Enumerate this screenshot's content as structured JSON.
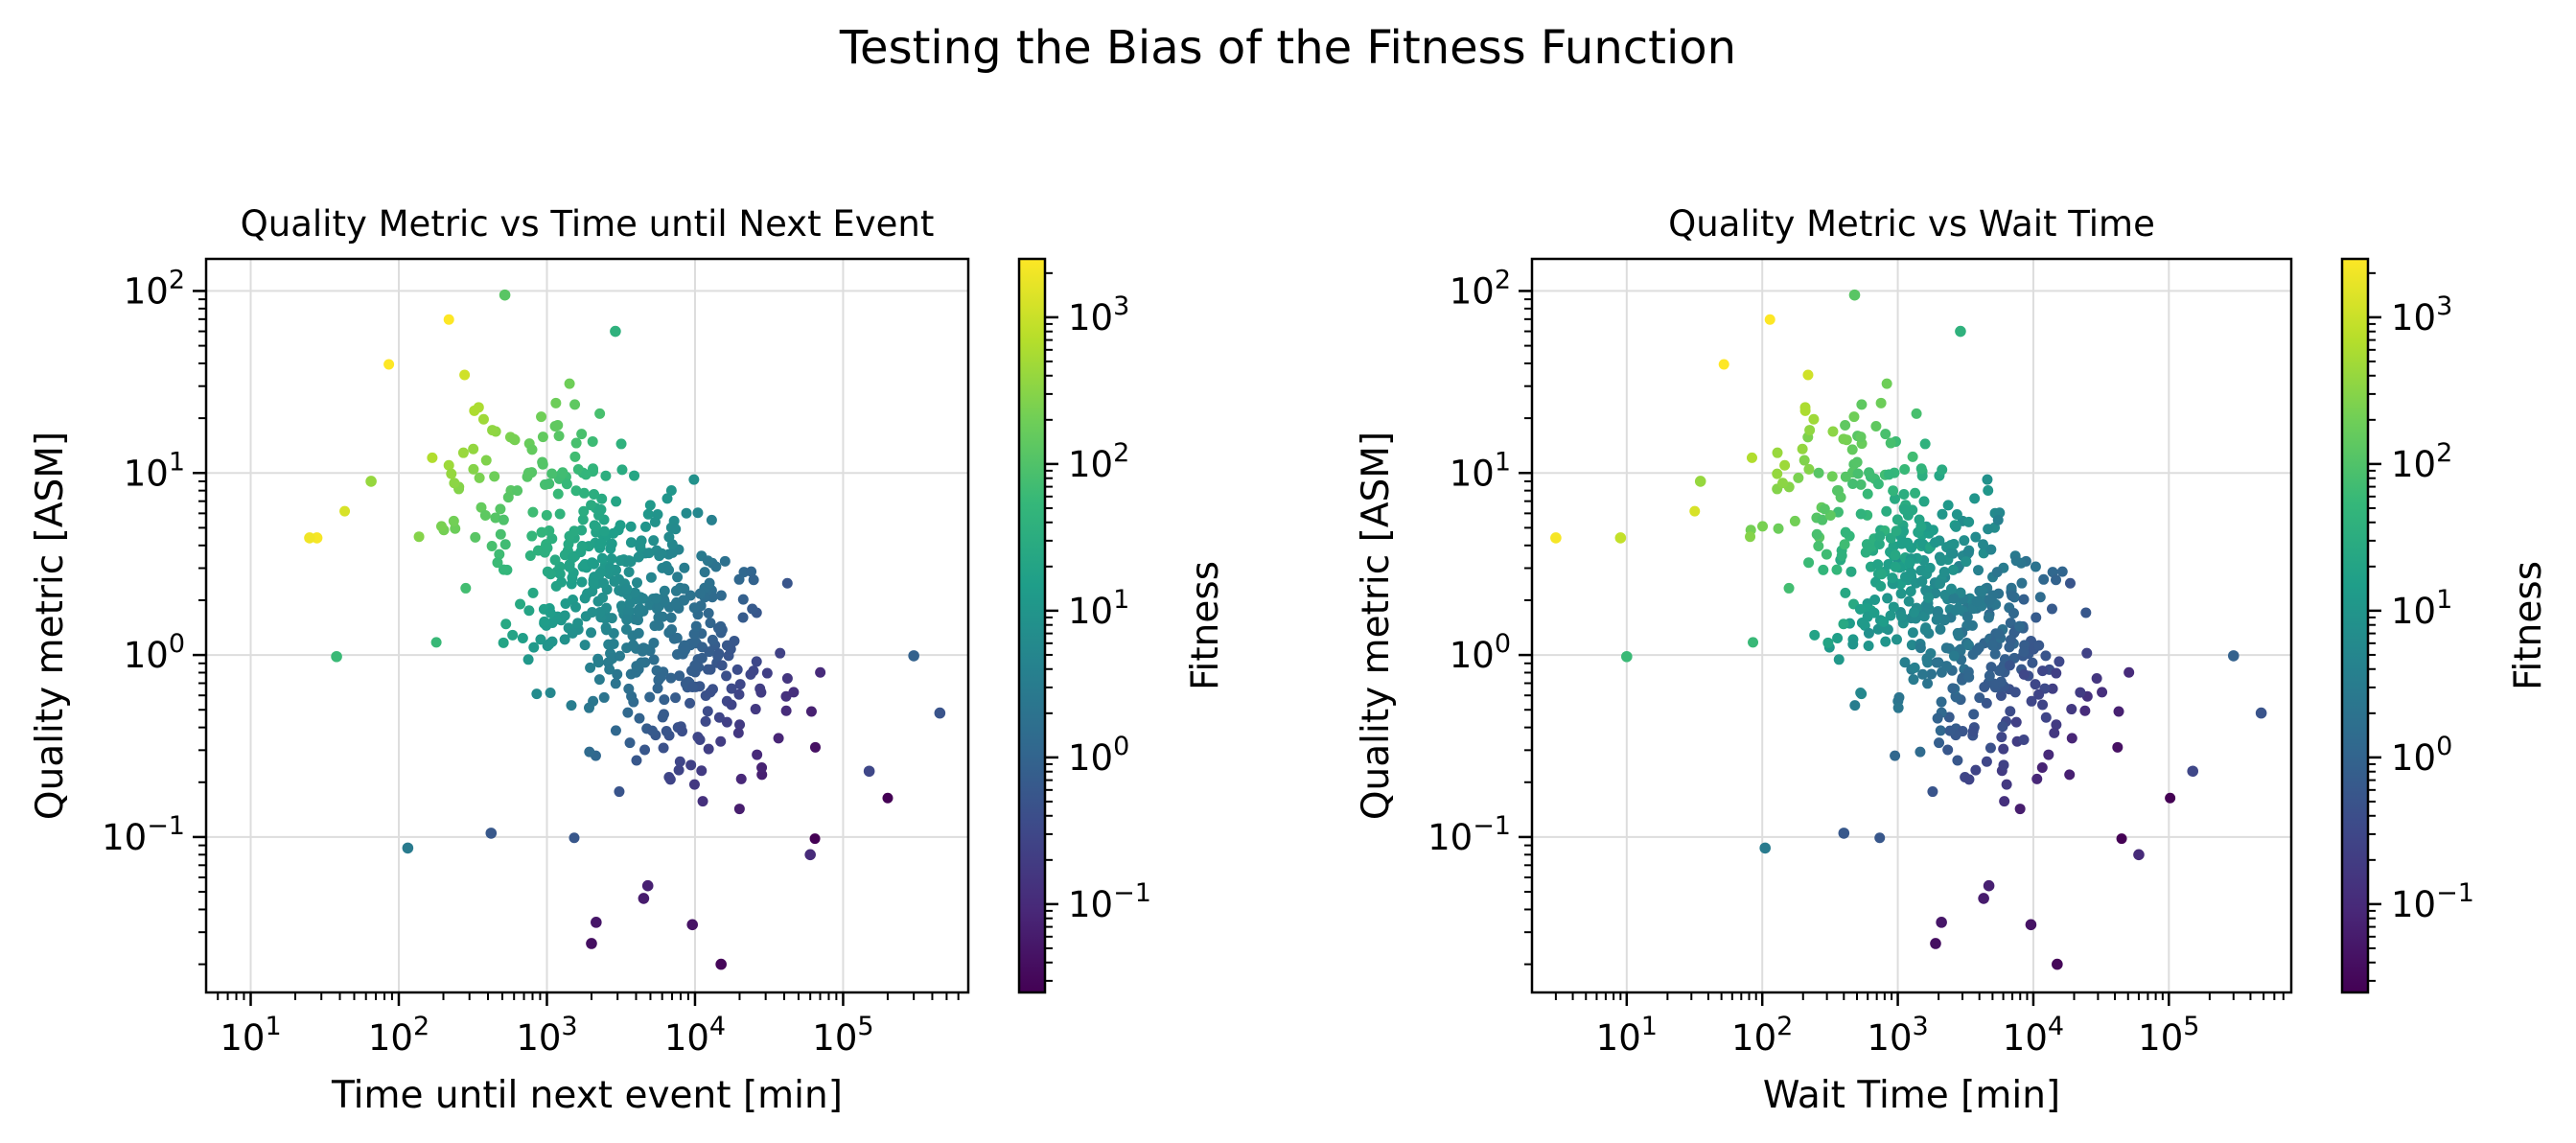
{
  "figure": {
    "suptitle": "Testing the Bias of the Fitness Function"
  },
  "colors": {
    "colormap": "viridis",
    "viridis_stops": [
      "#440154",
      "#482878",
      "#3e4989",
      "#31688e",
      "#26828e",
      "#1f9e89",
      "#35b779",
      "#6ece58",
      "#b5de2b",
      "#fde725"
    ],
    "axes": "#000000",
    "grid": "#dddddd"
  },
  "chart_data": [
    {
      "type": "scatter",
      "title": "Quality Metric vs Time until Next Event",
      "xlabel": "Time until next event [min]",
      "ylabel": "Quality metric [ASM]",
      "xscale": "log",
      "yscale": "log",
      "xlim": [
        5,
        700000
      ],
      "ylim": [
        0.014,
        150
      ],
      "xticks": [
        10,
        100,
        1000,
        10000,
        100000
      ],
      "xticklabels": [
        "10^1",
        "10^2",
        "10^3",
        "10^4",
        "10^5"
      ],
      "yticks": [
        0.1,
        1,
        10,
        100
      ],
      "yticklabels": [
        "10^-1",
        "10^0",
        "10^1",
        "10^2"
      ],
      "grid": true,
      "colorbar": {
        "label": "Fitness",
        "scale": "log",
        "range": [
          0.025,
          2500
        ],
        "ticks": [
          0.1,
          1,
          10,
          100,
          1000
        ],
        "ticklabels": [
          "10^-1",
          "10^0",
          "10^1",
          "10^2",
          "10^3"
        ]
      },
      "point_cloud": {
        "points_shown": 540,
        "note": "dense cloud centered near x=3000 min, y=3 ASM; fitness ≈ quality/wait·scale",
        "notable_points": [
          {
            "x": 28,
            "y": 4.4,
            "fitness": 2200
          },
          {
            "x": 25,
            "y": 4.4,
            "fitness": 2000
          },
          {
            "x": 65,
            "y": 9,
            "fitness": 400
          },
          {
            "x": 520,
            "y": 95,
            "fitness": 120
          },
          {
            "x": 2900,
            "y": 60,
            "fitness": 40
          },
          {
            "x": 38,
            "y": 0.98,
            "fitness": 60
          },
          {
            "x": 115,
            "y": 0.087,
            "fitness": 3
          },
          {
            "x": 420,
            "y": 0.105,
            "fitness": 0.6
          },
          {
            "x": 2000,
            "y": 0.026,
            "fitness": 0.04
          },
          {
            "x": 2150,
            "y": 0.034,
            "fitness": 0.05
          },
          {
            "x": 4800,
            "y": 0.054,
            "fitness": 0.07
          },
          {
            "x": 4500,
            "y": 0.046,
            "fitness": 0.06
          },
          {
            "x": 9600,
            "y": 0.033,
            "fitness": 0.045
          },
          {
            "x": 15000,
            "y": 0.02,
            "fitness": 0.03
          },
          {
            "x": 60000,
            "y": 0.08,
            "fitness": 0.1
          },
          {
            "x": 300000,
            "y": 0.99,
            "fitness": 0.9
          },
          {
            "x": 450000,
            "y": 0.48,
            "fitness": 0.5
          },
          {
            "x": 150000,
            "y": 0.23,
            "fitness": 0.3
          }
        ]
      }
    },
    {
      "type": "scatter",
      "title": "Quality Metric vs Wait Time",
      "xlabel": "Wait Time [min]",
      "ylabel": "Quality metric [ASM]",
      "xscale": "log",
      "yscale": "log",
      "xlim": [
        2,
        800000
      ],
      "ylim": [
        0.014,
        150
      ],
      "xticks": [
        10,
        100,
        1000,
        10000,
        100000
      ],
      "xticklabels": [
        "10^1",
        "10^2",
        "10^3",
        "10^4",
        "10^5"
      ],
      "yticks": [
        0.1,
        1,
        10,
        100
      ],
      "yticklabels": [
        "10^-1",
        "10^0",
        "10^1",
        "10^2"
      ],
      "grid": true,
      "colorbar": {
        "label": "Fitness",
        "scale": "log",
        "range": [
          0.025,
          2500
        ],
        "ticks": [
          0.1,
          1,
          10,
          100,
          1000
        ],
        "ticklabels": [
          "10^-1",
          "10^0",
          "10^1",
          "10^2",
          "10^3"
        ]
      },
      "point_cloud": {
        "points_shown": 540,
        "note": "same points as left panel, plotted against wait time",
        "notable_points": [
          {
            "x": 3,
            "y": 4.4,
            "fitness": 2200
          },
          {
            "x": 9,
            "y": 4.4,
            "fitness": 900
          },
          {
            "x": 35,
            "y": 9,
            "fitness": 400
          },
          {
            "x": 480,
            "y": 95,
            "fitness": 120
          },
          {
            "x": 2900,
            "y": 60,
            "fitness": 40
          },
          {
            "x": 10,
            "y": 0.98,
            "fitness": 60
          },
          {
            "x": 105,
            "y": 0.087,
            "fitness": 3
          },
          {
            "x": 400,
            "y": 0.105,
            "fitness": 0.6
          },
          {
            "x": 1900,
            "y": 0.026,
            "fitness": 0.04
          },
          {
            "x": 2100,
            "y": 0.034,
            "fitness": 0.05
          },
          {
            "x": 4700,
            "y": 0.054,
            "fitness": 0.07
          },
          {
            "x": 4300,
            "y": 0.046,
            "fitness": 0.06
          },
          {
            "x": 9600,
            "y": 0.033,
            "fitness": 0.045
          },
          {
            "x": 15000,
            "y": 0.02,
            "fitness": 0.03
          },
          {
            "x": 60000,
            "y": 0.08,
            "fitness": 0.1
          },
          {
            "x": 300000,
            "y": 0.99,
            "fitness": 0.9
          },
          {
            "x": 480000,
            "y": 0.48,
            "fitness": 0.5
          },
          {
            "x": 150000,
            "y": 0.23,
            "fitness": 0.3
          }
        ]
      }
    }
  ]
}
